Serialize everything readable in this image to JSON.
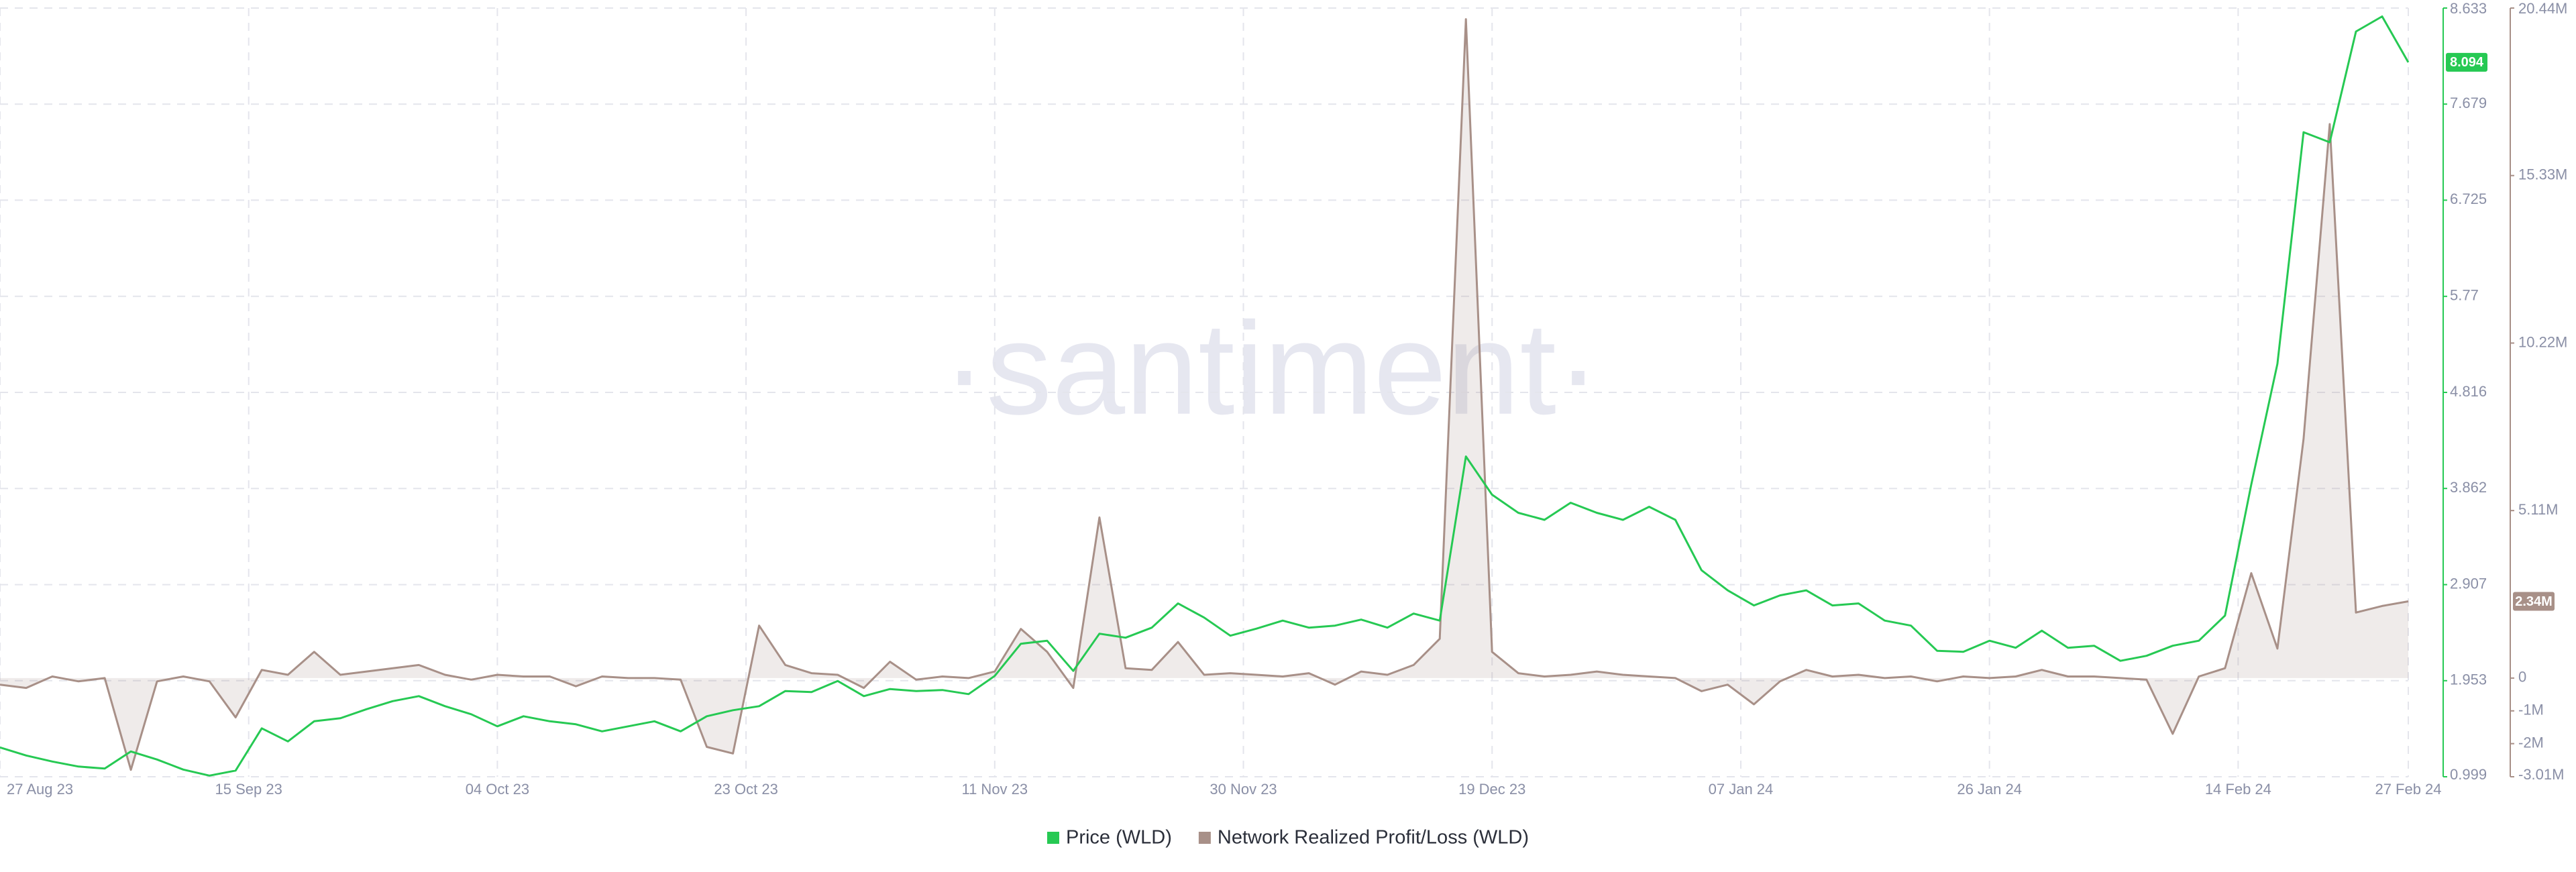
{
  "chart_data": {
    "type": "line",
    "watermark": "·santiment·",
    "x": [
      "2023-08-27",
      "2023-08-29",
      "2023-08-31",
      "2023-09-02",
      "2023-09-04",
      "2023-09-06",
      "2023-09-08",
      "2023-09-10",
      "2023-09-12",
      "2023-09-14",
      "2023-09-16",
      "2023-09-18",
      "2023-09-20",
      "2023-09-22",
      "2023-09-24",
      "2023-09-26",
      "2023-09-28",
      "2023-09-30",
      "2023-10-02",
      "2023-10-04",
      "2023-10-06",
      "2023-10-08",
      "2023-10-10",
      "2023-10-12",
      "2023-10-14",
      "2023-10-16",
      "2023-10-18",
      "2023-10-20",
      "2023-10-22",
      "2023-10-24",
      "2023-10-26",
      "2023-10-28",
      "2023-10-30",
      "2023-11-01",
      "2023-11-03",
      "2023-11-05",
      "2023-11-07",
      "2023-11-09",
      "2023-11-11",
      "2023-11-13",
      "2023-11-15",
      "2023-11-17",
      "2023-11-19",
      "2023-11-21",
      "2023-11-23",
      "2023-11-25",
      "2023-11-27",
      "2023-11-29",
      "2023-12-01",
      "2023-12-03",
      "2023-12-05",
      "2023-12-07",
      "2023-12-09",
      "2023-12-11",
      "2023-12-13",
      "2023-12-15",
      "2023-12-17",
      "2023-12-19",
      "2023-12-21",
      "2023-12-23",
      "2023-12-25",
      "2023-12-27",
      "2023-12-29",
      "2023-12-31",
      "2024-01-02",
      "2024-01-04",
      "2024-01-06",
      "2024-01-08",
      "2024-01-10",
      "2024-01-12",
      "2024-01-14",
      "2024-01-16",
      "2024-01-18",
      "2024-01-20",
      "2024-01-22",
      "2024-01-24",
      "2024-01-26",
      "2024-01-28",
      "2024-01-30",
      "2024-02-01",
      "2024-02-03",
      "2024-02-05",
      "2024-02-07",
      "2024-02-09",
      "2024-02-11",
      "2024-02-13",
      "2024-02-15",
      "2024-02-17",
      "2024-02-19",
      "2024-02-21",
      "2024-02-23",
      "2024-02-25",
      "2024-02-27"
    ],
    "xlim": [
      "2023-08-27",
      "2024-02-27"
    ],
    "xticks": [
      {
        "value": "2023-08-27",
        "label": "27 Aug 23"
      },
      {
        "value": "2023-09-15",
        "label": "15 Sep 23"
      },
      {
        "value": "2023-10-04",
        "label": "04 Oct 23"
      },
      {
        "value": "2023-10-23",
        "label": "23 Oct 23"
      },
      {
        "value": "2023-11-11",
        "label": "11 Nov 23"
      },
      {
        "value": "2023-11-30",
        "label": "30 Nov 23"
      },
      {
        "value": "2023-12-19",
        "label": "19 Dec 23"
      },
      {
        "value": "2024-01-07",
        "label": "07 Jan 24"
      },
      {
        "value": "2024-01-26",
        "label": "26 Jan 24"
      },
      {
        "value": "2024-02-14",
        "label": "14 Feb 24"
      },
      {
        "value": "2024-02-27",
        "label": "27 Feb 24"
      }
    ],
    "ylim": [
      0.999,
      8.633
    ],
    "yticks": [
      0.999,
      1.953,
      2.907,
      3.862,
      4.816,
      5.77,
      6.725,
      7.679,
      8.633
    ],
    "y2lim": [
      -3010000,
      20440000
    ],
    "y2ticks": [
      {
        "value": -3010000,
        "label": "-3.01M"
      },
      {
        "value": -2000000,
        "label": "-2M"
      },
      {
        "value": -1000000,
        "label": "-1M"
      },
      0,
      {
        "value": 5110000,
        "label": "5.11M"
      },
      {
        "value": 10220000,
        "label": "10.22M"
      },
      {
        "value": 15330000,
        "label": "15.33M"
      },
      {
        "value": 20440000,
        "label": "20.44M"
      }
    ],
    "grid": true,
    "legend": "bottom",
    "series": [
      {
        "name": "Price (WLD)",
        "color": "#26c953",
        "axis": "y",
        "values": [
          1.29,
          1.21,
          1.15,
          1.1,
          1.08,
          1.25,
          1.17,
          1.07,
          1.01,
          1.06,
          1.48,
          1.35,
          1.55,
          1.58,
          1.67,
          1.75,
          1.8,
          1.7,
          1.62,
          1.5,
          1.6,
          1.55,
          1.52,
          1.45,
          1.5,
          1.55,
          1.45,
          1.6,
          1.66,
          1.7,
          1.85,
          1.84,
          1.95,
          1.8,
          1.87,
          1.85,
          1.86,
          1.82,
          2.0,
          2.32,
          2.35,
          2.05,
          2.42,
          2.38,
          2.48,
          2.72,
          2.58,
          2.4,
          2.47,
          2.55,
          2.48,
          2.5,
          2.56,
          2.48,
          2.62,
          2.55,
          4.18,
          3.8,
          3.62,
          3.55,
          3.72,
          3.62,
          3.55,
          3.68,
          3.55,
          3.05,
          2.85,
          2.7,
          2.8,
          2.85,
          2.7,
          2.72,
          2.55,
          2.5,
          2.25,
          2.24,
          2.35,
          2.28,
          2.45,
          2.28,
          2.3,
          2.15,
          2.2,
          2.3,
          2.35,
          2.6,
          3.9,
          5.1,
          7.4,
          7.3,
          8.4,
          8.55,
          8.094
        ],
        "value_labels": [
          null,
          null,
          null,
          null,
          null,
          null,
          null,
          null,
          null,
          null,
          null,
          null,
          null,
          null,
          null,
          null,
          null,
          null,
          null,
          null,
          null,
          null,
          null,
          null,
          null,
          null,
          null,
          null,
          null,
          null,
          null,
          null,
          null,
          null,
          null,
          null,
          null,
          null,
          null,
          null,
          null,
          null,
          null,
          null,
          null,
          null,
          null,
          null,
          null,
          null,
          null,
          null,
          null,
          null,
          null,
          null,
          null,
          null,
          null,
          null,
          null,
          null,
          null,
          null,
          null,
          null,
          null,
          null,
          null,
          null,
          null,
          null,
          null,
          null,
          null,
          null,
          null,
          null,
          null,
          null,
          null,
          null,
          null,
          null,
          null,
          null,
          null,
          null,
          null,
          null,
          null,
          null,
          "8.094"
        ]
      },
      {
        "name": "Network Realized Profit/Loss (WLD)",
        "color": "#a89088",
        "axis": "y2",
        "values": [
          -200000,
          -300000,
          50000,
          -100000,
          0,
          -2800000,
          -100000,
          50000,
          -100000,
          -1200000,
          250000,
          100000,
          800000,
          100000,
          200000,
          300000,
          400000,
          100000,
          -50000,
          100000,
          50000,
          50000,
          -250000,
          50000,
          0,
          0,
          -50000,
          -2100000,
          -2300000,
          1600000,
          400000,
          150000,
          100000,
          -300000,
          500000,
          -50000,
          50000,
          0,
          200000,
          1500000,
          800000,
          -300000,
          4900000,
          300000,
          250000,
          1100000,
          100000,
          150000,
          100000,
          50000,
          150000,
          -200000,
          200000,
          100000,
          400000,
          1200000,
          20100000,
          800000,
          150000,
          50000,
          100000,
          200000,
          100000,
          50000,
          0,
          -400000,
          -200000,
          -800000,
          -100000,
          250000,
          50000,
          100000,
          0,
          50000,
          -100000,
          50000,
          0,
          50000,
          250000,
          50000,
          50000,
          0,
          -50000,
          -1700000,
          50000,
          300000,
          3200000,
          900000,
          7300000,
          16900000,
          2000000,
          2200000,
          2340000
        ],
        "value_labels": [
          null,
          null,
          null,
          null,
          null,
          null,
          null,
          null,
          null,
          null,
          null,
          null,
          null,
          null,
          null,
          null,
          null,
          null,
          null,
          null,
          null,
          null,
          null,
          null,
          null,
          null,
          null,
          null,
          null,
          null,
          null,
          null,
          null,
          null,
          null,
          null,
          null,
          null,
          null,
          null,
          null,
          null,
          null,
          null,
          null,
          null,
          null,
          null,
          null,
          null,
          null,
          null,
          null,
          null,
          null,
          null,
          null,
          null,
          null,
          null,
          null,
          null,
          null,
          null,
          null,
          null,
          null,
          null,
          null,
          null,
          null,
          null,
          null,
          null,
          null,
          null,
          null,
          null,
          null,
          null,
          null,
          null,
          null,
          null,
          null,
          null,
          null,
          null,
          null,
          null,
          null,
          null,
          "2.34M"
        ]
      }
    ]
  }
}
